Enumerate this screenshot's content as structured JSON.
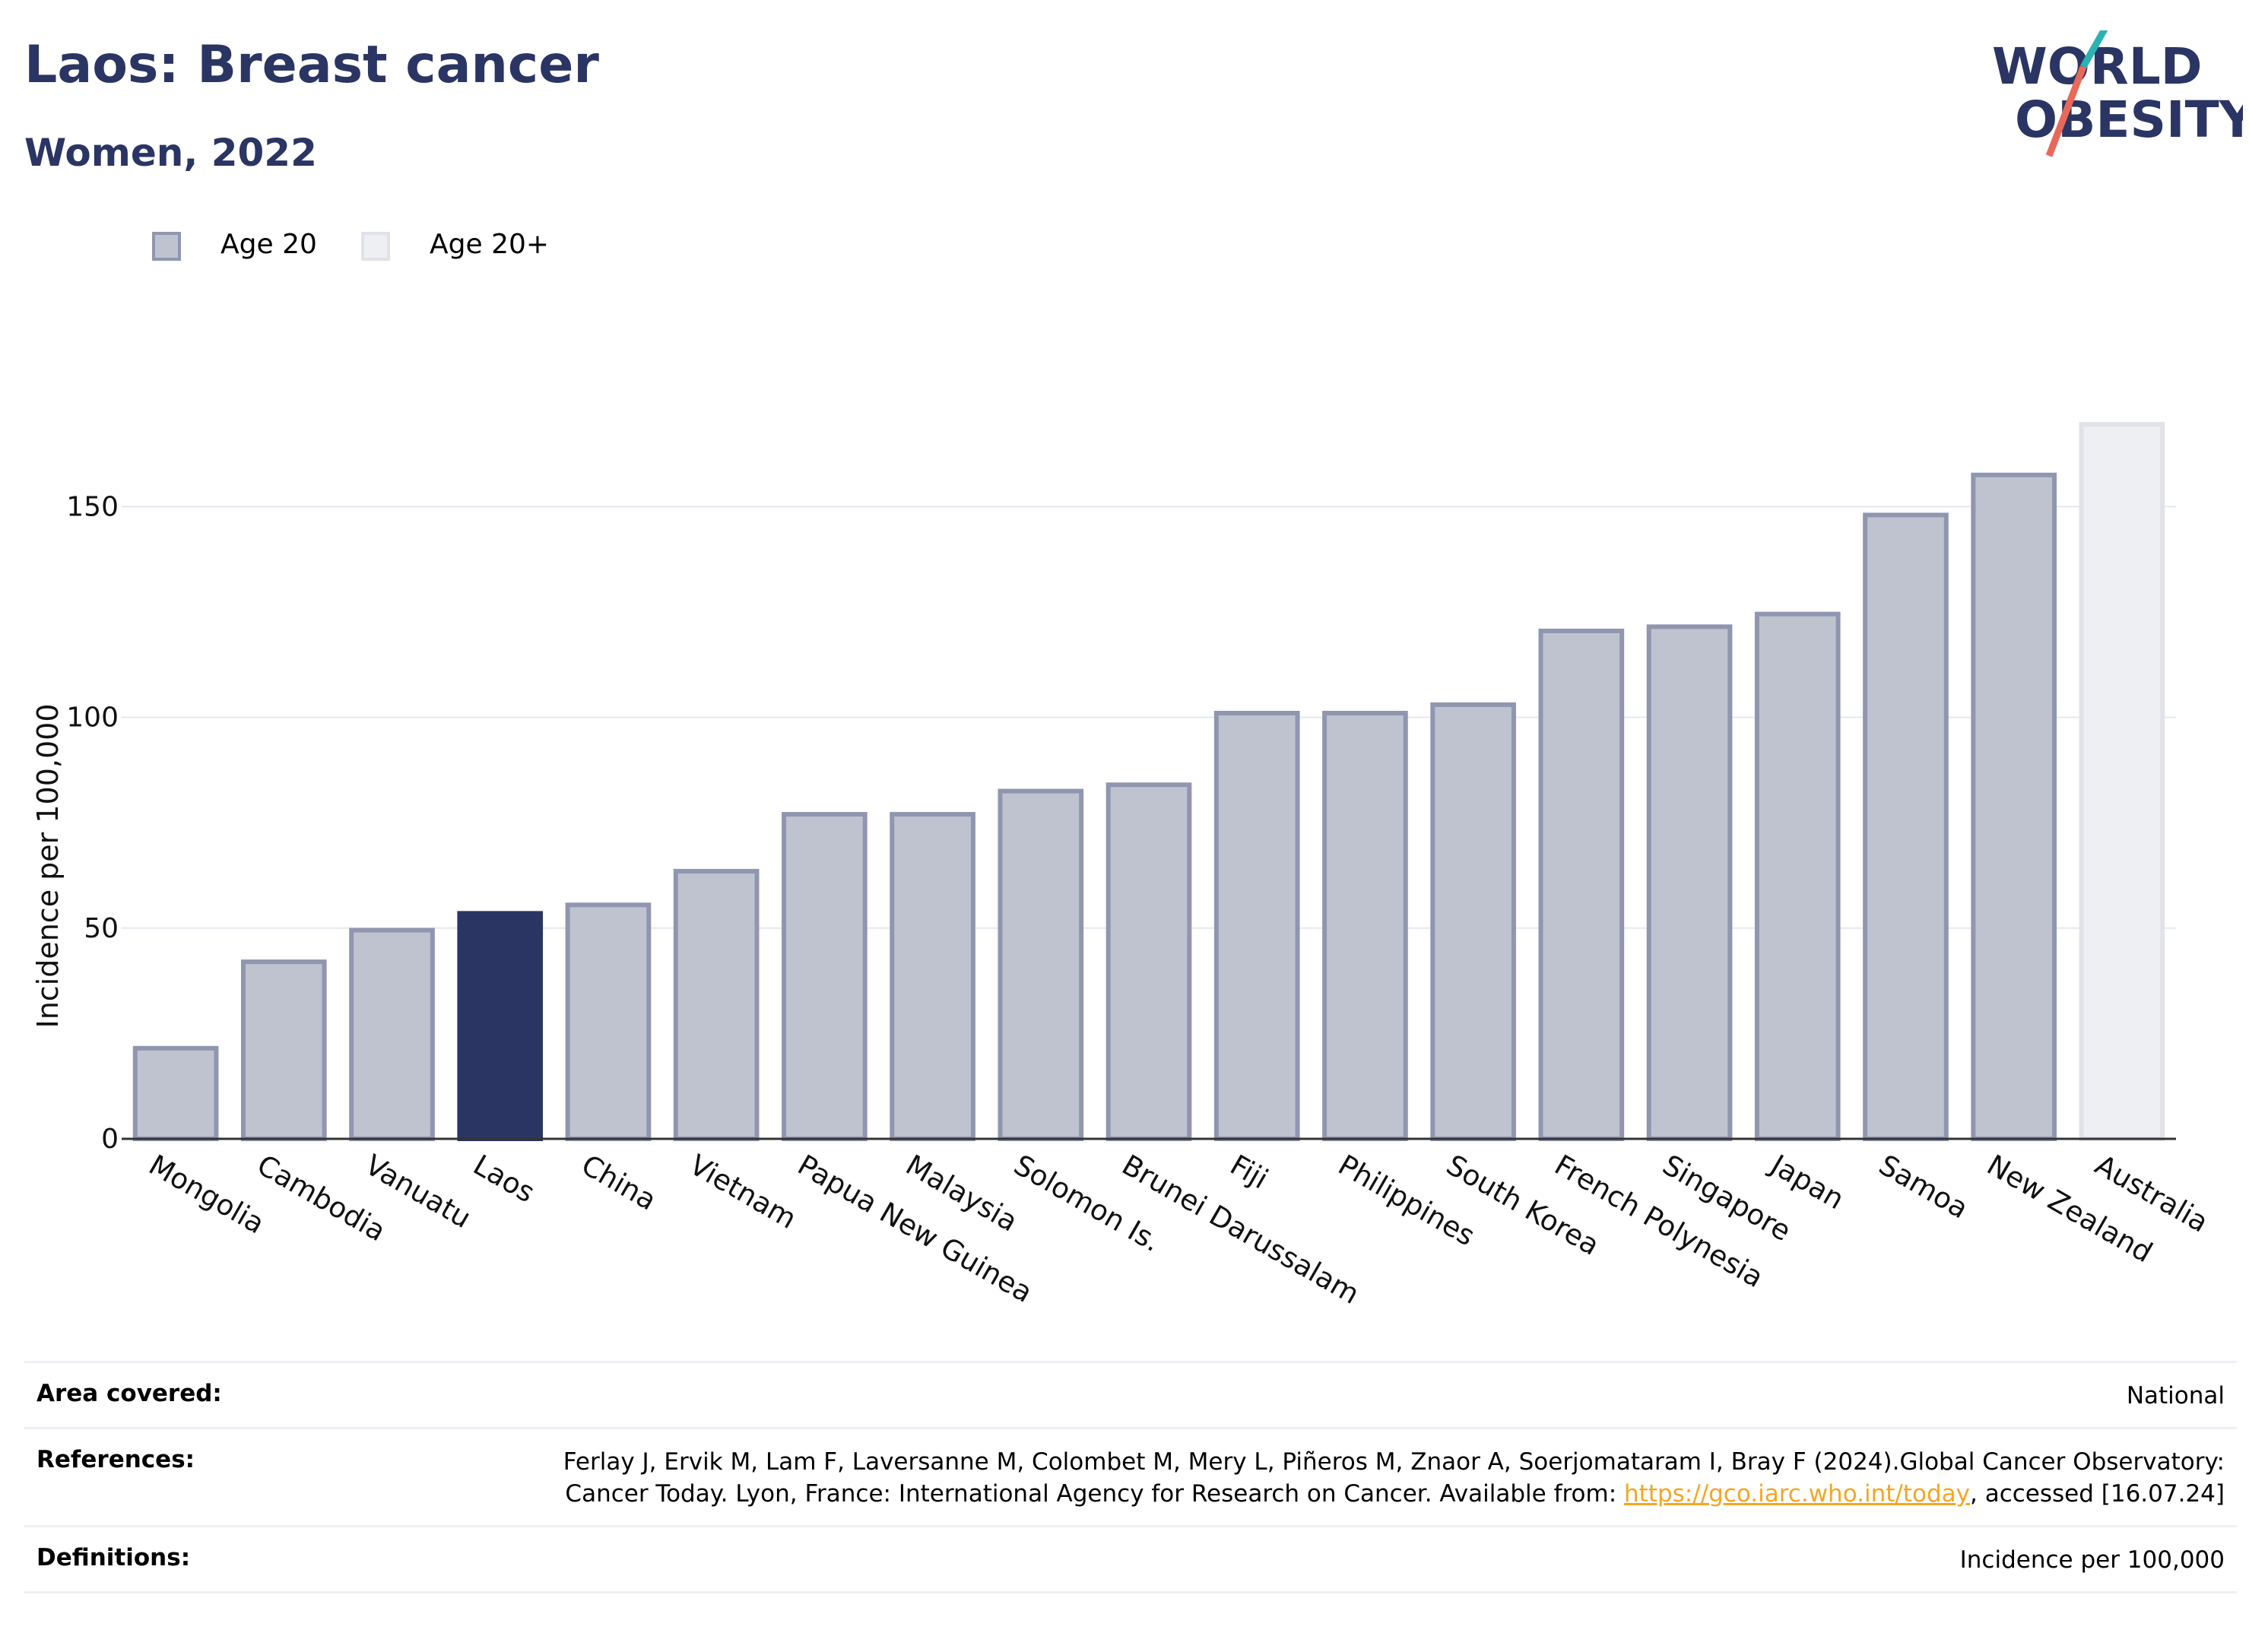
{
  "header": {
    "title": "Laos: Breast cancer",
    "subtitle": "Women, 2022"
  },
  "logo": {
    "line1": "WORLD",
    "line2": "OBESITY",
    "colors": {
      "navy": "#2a3563",
      "teal": "#2ab3b1",
      "coral": "#e8685a"
    }
  },
  "legend": [
    {
      "label": "Age 20",
      "color": "#bfc3d0",
      "border": "#9096af"
    },
    {
      "label": "Age 20+",
      "color": "#eeeff3",
      "border": "#e0e2e8"
    }
  ],
  "chart_data": {
    "type": "bar",
    "ylabel": "Incidence per 100,000",
    "ylim": [
      0,
      180
    ],
    "yticks": [
      0,
      50,
      100,
      150
    ],
    "grid": true,
    "highlight": "Laos",
    "highlight_color": "#2a3563",
    "categories": [
      "Mongolia",
      "Cambodia",
      "Vanuatu",
      "Laos",
      "China",
      "Vietnam",
      "Papua New Guinea",
      "Malaysia",
      "Solomon Is.",
      "Brunei Darussalam",
      "Fiji",
      "Philippines",
      "South Korea",
      "French Polynesia",
      "Singapore",
      "Japan",
      "Samoa",
      "New Zealand",
      "Australia"
    ],
    "values": [
      21.5,
      42,
      49.5,
      53.5,
      55.5,
      63.5,
      77,
      77,
      82.5,
      84,
      101,
      101,
      103,
      120.5,
      121.5,
      124.5,
      148,
      157.5,
      169.5
    ],
    "series_group": [
      "Age 20",
      "Age 20",
      "Age 20",
      "Age 20",
      "Age 20",
      "Age 20",
      "Age 20",
      "Age 20",
      "Age 20",
      "Age 20",
      "Age 20",
      "Age 20",
      "Age 20",
      "Age 20",
      "Age 20",
      "Age 20",
      "Age 20",
      "Age 20",
      "Age 20+"
    ]
  },
  "footer": {
    "area": {
      "label": "Area covered:",
      "value": "National"
    },
    "references": {
      "label": "References:",
      "text_before": "Ferlay J, Ervik M, Lam F, Laversanne M, Colombet M, Mery L, Piñeros M, Znaor A, Soerjomataram I, Bray F (2024).Global Cancer Observatory: Cancer Today. Lyon, France: International Agency for Research on Cancer. Available from: ",
      "link": "https://gco.iarc.who.int/today",
      "text_after": ", accessed [16.07.24]"
    },
    "definitions": {
      "label": "Definitions:",
      "value": "Incidence per 100,000"
    }
  }
}
